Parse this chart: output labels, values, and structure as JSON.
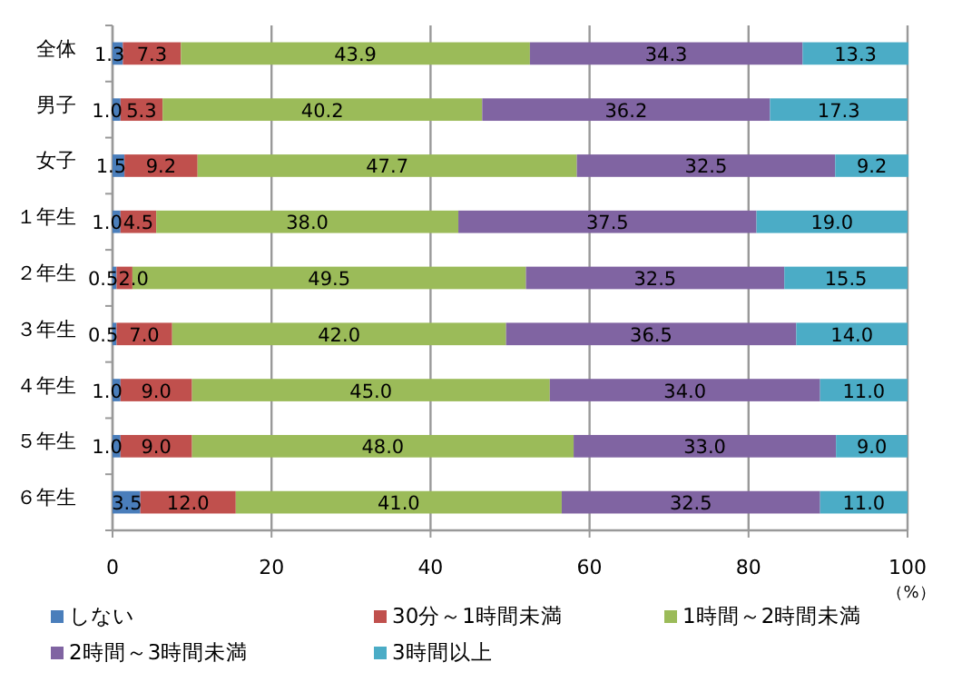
{
  "chart_data": {
    "type": "bar",
    "orientation": "horizontal",
    "stacked": true,
    "grid": "x",
    "legend": "bottom",
    "xlabel": "（%）",
    "categories": [
      "全体",
      "男子",
      "女子",
      "１年生",
      "２年生",
      "３年生",
      "４年生",
      "５年生",
      "６年生"
    ],
    "xlim": [
      0,
      100
    ],
    "xticks": [
      0,
      20,
      40,
      60,
      80,
      100
    ],
    "series": [
      {
        "name": "しない",
        "color": "#4a7ebb",
        "values": [
          1.3,
          1.0,
          1.5,
          1.0,
          0.5,
          0.5,
          1.0,
          1.0,
          3.5
        ],
        "value_labels": [
          "1.3",
          "1.0",
          "1.5",
          "1.0",
          "0.5",
          "0.5",
          "1.0",
          "1.0",
          "3.5"
        ]
      },
      {
        "name": "30分～1時間未満",
        "color": "#c0504d",
        "values": [
          7.3,
          5.3,
          9.2,
          4.5,
          2.0,
          7.0,
          9.0,
          9.0,
          12.0
        ],
        "value_labels": [
          "7.3",
          "5.3",
          "9.2",
          "4.5",
          "2.0",
          "7.0",
          "9.0",
          "9.0",
          "12.0"
        ]
      },
      {
        "name": "1時間～2時間未満",
        "color": "#9bbb59",
        "values": [
          43.9,
          40.2,
          47.7,
          38.0,
          49.5,
          42.0,
          45.0,
          48.0,
          41.0
        ],
        "value_labels": [
          "43.9",
          "40.2",
          "47.7",
          "38.0",
          "49.5",
          "42.0",
          "45.0",
          "48.0",
          "41.0"
        ]
      },
      {
        "name": "2時間～3時間未満",
        "color": "#8064a2",
        "values": [
          34.3,
          36.2,
          32.5,
          37.5,
          32.5,
          36.5,
          34.0,
          33.0,
          32.5
        ],
        "value_labels": [
          "34.3",
          "36.2",
          "32.5",
          "37.5",
          "32.5",
          "36.5",
          "34.0",
          "33.0",
          "32.5"
        ]
      },
      {
        "name": "3時間以上",
        "color": "#4bacc6",
        "values": [
          13.3,
          17.3,
          9.2,
          19.0,
          15.5,
          14.0,
          11.0,
          9.0,
          11.0
        ],
        "value_labels": [
          "13.3",
          "17.3",
          "9.2",
          "19.0",
          "15.5",
          "14.0",
          "11.0",
          "9.0",
          "11.0"
        ]
      }
    ]
  }
}
